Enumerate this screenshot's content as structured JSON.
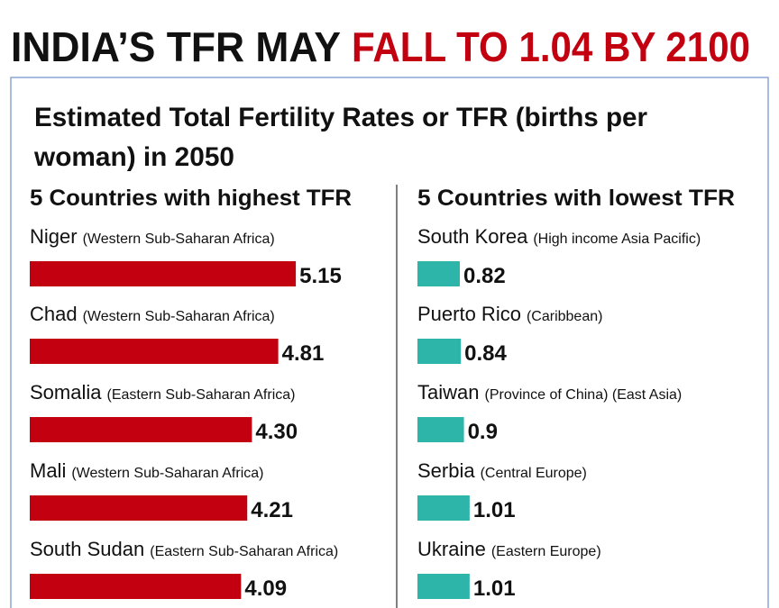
{
  "headline": [
    "INDIA’S TFR MAY",
    "FALL TO 1.04 BY 2100"
  ],
  "subtitle": [
    "Estimated Total Fertility Rates or TFR (births per",
    "woman) in 2050"
  ],
  "chart_data": [
    {
      "type": "bar",
      "orientation": "horizontal",
      "title": "5 Countries with highest TFR",
      "color": "#c3000f",
      "categories": [
        "Niger",
        "Chad",
        "Somalia",
        "Mali",
        "South Sudan"
      ],
      "regions": [
        "(Western Sub-Saharan Africa)",
        "(Western Sub-Saharan Africa)",
        "(Eastern Sub-Saharan Africa)",
        "(Western Sub-Saharan Africa)",
        "(Eastern Sub-Saharan Africa)"
      ],
      "values": [
        5.15,
        4.81,
        4.3,
        4.21,
        4.09
      ],
      "value_labels": [
        "5.15",
        "4.81",
        "4.30",
        "4.21",
        "4.09"
      ]
    },
    {
      "type": "bar",
      "orientation": "horizontal",
      "title": "5 Countries with lowest TFR",
      "color": "#2cb5a8",
      "categories": [
        "South Korea",
        "Puerto Rico",
        "Taiwan",
        "Serbia",
        "Ukraine"
      ],
      "regions": [
        "(High income Asia Pacific)",
        "(Caribbean)",
        "(Province of China) (East Asia)",
        "(Central Europe)",
        "(Eastern Europe)"
      ],
      "values": [
        0.82,
        0.84,
        0.9,
        1.01,
        1.01
      ],
      "value_labels": [
        "0.82",
        "0.84",
        "0.9",
        "1.01",
        "1.01"
      ]
    }
  ]
}
